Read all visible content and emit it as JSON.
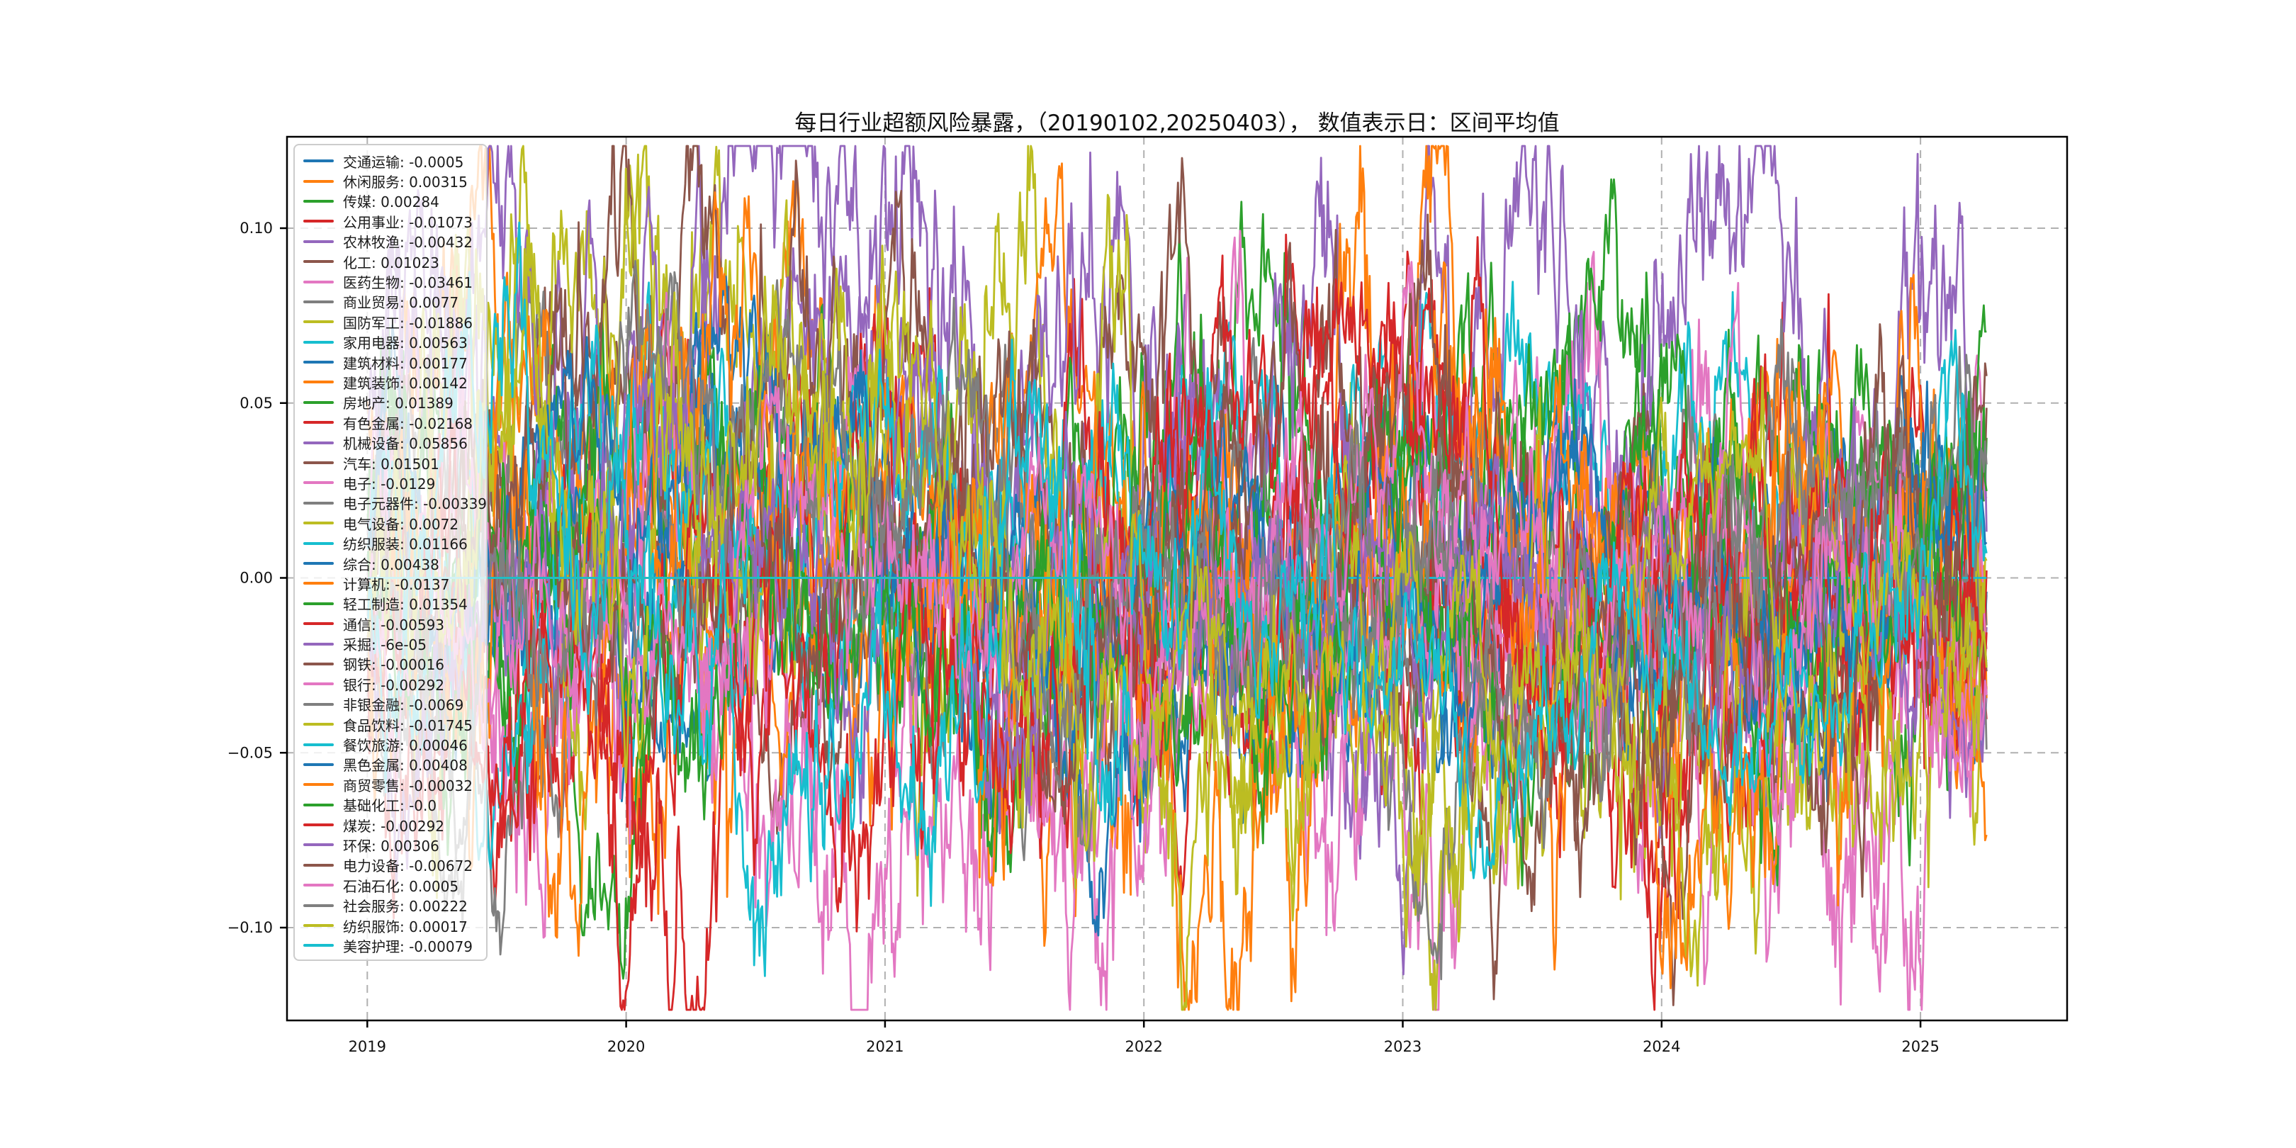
{
  "chart_data": {
    "type": "line",
    "title": "每日行业超额风险暴露，（20190102,20250403）， 数值表示日：区间平均值",
    "start_date": "20190102",
    "end_date": "20250403",
    "value_note": "数值表示日：区间平均值",
    "grid": true,
    "legend_position": "upper left",
    "x_ticks": [
      2019,
      2020,
      2021,
      2022,
      2023,
      2024,
      2025
    ],
    "y_ticks": [
      {
        "value": 0.1,
        "label": "0.10"
      },
      {
        "value": 0.05,
        "label": "0.05"
      },
      {
        "value": 0.0,
        "label": "0.00"
      },
      {
        "value": -0.05,
        "label": "−0.05"
      },
      {
        "value": -0.1,
        "label": "−0.10"
      }
    ],
    "ylim": [
      -0.127,
      0.126
    ],
    "xlim_years": [
      2018.69,
      2025.57
    ],
    "palette": [
      "#1f77b4",
      "#ff7f0e",
      "#2ca02c",
      "#d62728",
      "#9467bd",
      "#8c564b",
      "#e377c2",
      "#7f7f7f",
      "#bcbd22",
      "#17becf"
    ],
    "series": [
      {
        "label": "交通运输",
        "value": "-0.0005",
        "volScale": 0.75
      },
      {
        "label": "休闲服务",
        "value": "0.00315",
        "volScale": 1.5,
        "active": [
          0,
          0.472
        ],
        "profile": [
          [
            0,
            0.005
          ],
          [
            0.17,
            -0.04
          ],
          [
            0.22,
            -0.02
          ],
          [
            0.3,
            -0.045
          ],
          [
            0.4,
            0.0
          ],
          [
            0.472,
            0.01
          ]
        ]
      },
      {
        "label": "传媒",
        "value": "0.00284",
        "volScale": 1.1
      },
      {
        "label": "公用事业",
        "value": "-0.01073",
        "volScale": 1.0
      },
      {
        "label": "农林牧渔",
        "value": "-0.00432",
        "volScale": 1.2,
        "profile": [
          [
            0,
            0.01
          ],
          [
            0.1,
            0.03
          ],
          [
            0.18,
            0.01
          ],
          [
            0.3,
            -0.01
          ],
          [
            0.5,
            -0.02
          ],
          [
            0.7,
            0.0
          ],
          [
            0.85,
            -0.015
          ],
          [
            1,
            -0.01
          ]
        ]
      },
      {
        "label": "化工",
        "value": "0.01023",
        "volScale": 1.0,
        "active": [
          0,
          0.472
        ],
        "profile": [
          [
            0,
            0.005
          ],
          [
            0.15,
            0.02
          ],
          [
            0.3,
            0.01
          ],
          [
            0.4,
            0.02
          ],
          [
            0.472,
            0.015
          ]
        ]
      },
      {
        "label": "医药生物",
        "value": "-0.03461",
        "volScale": 1.6,
        "profile": [
          [
            0,
            -0.005
          ],
          [
            0.1,
            -0.03
          ],
          [
            0.17,
            -0.05
          ],
          [
            0.2,
            -0.1
          ],
          [
            0.24,
            -0.05
          ],
          [
            0.285,
            -0.085
          ],
          [
            0.33,
            -0.045
          ],
          [
            0.45,
            -0.035
          ],
          [
            0.55,
            -0.03
          ],
          [
            0.65,
            -0.02
          ],
          [
            0.75,
            -0.025
          ],
          [
            0.84,
            -0.03
          ],
          [
            0.9,
            -0.045
          ],
          [
            1,
            -0.03
          ]
        ]
      },
      {
        "label": "商业贸易",
        "value": "0.0077",
        "volScale": 0.9,
        "active": [
          0,
          0.472
        ]
      },
      {
        "label": "国防军工",
        "value": "-0.01886",
        "volScale": 1.4,
        "profile": [
          [
            0,
            0.0
          ],
          [
            0.15,
            0.03
          ],
          [
            0.25,
            0.04
          ],
          [
            0.3,
            0.02
          ],
          [
            0.35,
            -0.02
          ],
          [
            0.5,
            -0.04
          ],
          [
            0.65,
            -0.03
          ],
          [
            0.8,
            -0.04
          ],
          [
            1,
            -0.02
          ]
        ]
      },
      {
        "label": "家用电器",
        "value": "0.00563",
        "volScale": 0.95
      },
      {
        "label": "建筑材料",
        "value": "0.00177",
        "volScale": 0.95
      },
      {
        "label": "建筑装饰",
        "value": "0.00142",
        "volScale": 0.85
      },
      {
        "label": "房地产",
        "value": "0.01389",
        "volScale": 1.15,
        "profile": [
          [
            0,
            0.02
          ],
          [
            0.2,
            0.01
          ],
          [
            0.4,
            0.0
          ],
          [
            0.5,
            0.02
          ],
          [
            0.6,
            0.03
          ],
          [
            0.7,
            0.01
          ],
          [
            0.8,
            0.0
          ],
          [
            0.9,
            0.02
          ],
          [
            1,
            0.015
          ]
        ]
      },
      {
        "label": "有色金属",
        "value": "-0.02168",
        "volScale": 1.3,
        "profile": [
          [
            0,
            -0.01
          ],
          [
            0.2,
            -0.03
          ],
          [
            0.35,
            -0.04
          ],
          [
            0.5,
            -0.02
          ],
          [
            0.6,
            -0.035
          ],
          [
            0.75,
            -0.015
          ],
          [
            0.9,
            -0.02
          ],
          [
            1,
            -0.01
          ]
        ]
      },
      {
        "label": "机械设备",
        "value": "0.05856",
        "volScale": 1.5,
        "profile": [
          [
            0,
            0.055
          ],
          [
            0.08,
            0.075
          ],
          [
            0.15,
            0.055
          ],
          [
            0.22,
            0.08
          ],
          [
            0.27,
            0.1
          ],
          [
            0.33,
            0.06
          ],
          [
            0.42,
            0.045
          ],
          [
            0.5,
            0.055
          ],
          [
            0.56,
            0.1
          ],
          [
            0.62,
            0.05
          ],
          [
            0.68,
            0.07
          ],
          [
            0.74,
            0.075
          ],
          [
            0.8,
            0.05
          ],
          [
            0.86,
            0.035
          ],
          [
            0.92,
            0.05
          ],
          [
            1,
            0.055
          ]
        ]
      },
      {
        "label": "汽车",
        "value": "0.01501",
        "volScale": 1.2,
        "profile": [
          [
            0,
            0.01
          ],
          [
            0.12,
            0.04
          ],
          [
            0.25,
            0.03
          ],
          [
            0.4,
            0.02
          ],
          [
            0.55,
            0.035
          ],
          [
            0.7,
            0.01
          ],
          [
            0.85,
            0.005
          ],
          [
            1,
            0.01
          ]
        ]
      },
      {
        "label": "电子",
        "value": "-0.0129",
        "volScale": 1.3,
        "profile": [
          [
            0,
            0.02
          ],
          [
            0.15,
            0.04
          ],
          [
            0.25,
            0.02
          ],
          [
            0.4,
            -0.02
          ],
          [
            0.55,
            -0.04
          ],
          [
            0.7,
            -0.03
          ],
          [
            0.8,
            -0.02
          ],
          [
            0.9,
            -0.04
          ],
          [
            1,
            -0.03
          ]
        ]
      },
      {
        "label": "电子元器件",
        "value": "-0.00339",
        "volScale": 0.9
      },
      {
        "label": "电气设备",
        "value": "0.0072",
        "volScale": 1.3,
        "active": [
          0,
          0.472
        ],
        "profile": [
          [
            0,
            0.01
          ],
          [
            0.12,
            0.035
          ],
          [
            0.2,
            0.02
          ],
          [
            0.3,
            0.045
          ],
          [
            0.4,
            0.035
          ],
          [
            0.472,
            0.02
          ]
        ]
      },
      {
        "label": "纺织服装",
        "value": "0.01166",
        "volScale": 1.0,
        "active": [
          0,
          0.472
        ]
      },
      {
        "label": "综合",
        "value": "0.00438",
        "volScale": 0.8
      },
      {
        "label": "计算机",
        "value": "-0.0137",
        "volScale": 1.5,
        "profile": [
          [
            0,
            0.0
          ],
          [
            0.2,
            0.01
          ],
          [
            0.35,
            -0.025
          ],
          [
            0.5,
            -0.04
          ],
          [
            0.6,
            -0.02
          ],
          [
            0.655,
            0.06
          ],
          [
            0.685,
            0.105
          ],
          [
            0.71,
            0.04
          ],
          [
            0.75,
            -0.02
          ],
          [
            0.85,
            -0.035
          ],
          [
            0.93,
            0.0
          ],
          [
            1,
            -0.01
          ]
        ]
      },
      {
        "label": "轻工制造",
        "value": "0.01354",
        "volScale": 1.0
      },
      {
        "label": "通信",
        "value": "-0.00593",
        "volScale": 1.1
      },
      {
        "label": "采掘",
        "value": "-6e-05",
        "volScale": 1.0,
        "active": [
          0,
          0.472
        ]
      },
      {
        "label": "钢铁",
        "value": "-0.00016",
        "volScale": 0.85
      },
      {
        "label": "银行",
        "value": "-0.00292",
        "volScale": 0.8
      },
      {
        "label": "非银金融",
        "value": "-0.0069",
        "volScale": 1.0
      },
      {
        "label": "食品饮料",
        "value": "-0.01745",
        "volScale": 1.2,
        "profile": [
          [
            0,
            0.01
          ],
          [
            0.2,
            0.02
          ],
          [
            0.33,
            0.01
          ],
          [
            0.45,
            -0.03
          ],
          [
            0.6,
            -0.045
          ],
          [
            0.75,
            -0.04
          ],
          [
            0.9,
            -0.03
          ],
          [
            1,
            -0.035
          ]
        ]
      },
      {
        "label": "餐饮旅游",
        "value": "0.00046",
        "volScale": 1.1,
        "active": [
          0,
          0.472
        ]
      },
      {
        "label": "黑色金属",
        "value": "0.00408",
        "volScale": 0.85,
        "active": [
          0.472,
          1
        ]
      },
      {
        "label": "商贸零售",
        "value": "-0.00032",
        "volScale": 1.2,
        "active": [
          0.472,
          1
        ],
        "profile": [
          [
            0.472,
            0.0
          ],
          [
            0.6,
            -0.01
          ],
          [
            0.66,
            0.02
          ],
          [
            0.7,
            0.05
          ],
          [
            0.73,
            0.0
          ],
          [
            0.85,
            -0.01
          ],
          [
            1,
            0.0
          ]
        ]
      },
      {
        "label": "基础化工",
        "value": "-0.0",
        "volScale": 0.9,
        "active": [
          0.472,
          1
        ]
      },
      {
        "label": "煤炭",
        "value": "-0.00292",
        "volScale": 1.1,
        "active": [
          0.472,
          1
        ],
        "profile": [
          [
            0.472,
            0.0
          ],
          [
            0.6,
            0.02
          ],
          [
            0.7,
            0.03
          ],
          [
            0.78,
            -0.01
          ],
          [
            0.9,
            -0.02
          ],
          [
            1,
            -0.01
          ]
        ]
      },
      {
        "label": "环保",
        "value": "0.00306",
        "volScale": 0.9,
        "active": [
          0.472,
          1
        ]
      },
      {
        "label": "电力设备",
        "value": "-0.00672",
        "volScale": 1.1,
        "active": [
          0.472,
          1
        ],
        "profile": [
          [
            0.472,
            0.02
          ],
          [
            0.55,
            0.01
          ],
          [
            0.65,
            -0.01
          ],
          [
            0.75,
            -0.02
          ],
          [
            0.85,
            -0.015
          ],
          [
            1,
            -0.01
          ]
        ]
      },
      {
        "label": "石油石化",
        "value": "0.0005",
        "volScale": 1.0,
        "active": [
          0.472,
          1
        ],
        "profile": [
          [
            0.472,
            0.0
          ],
          [
            0.6,
            0.01
          ],
          [
            0.7,
            0.005
          ],
          [
            0.82,
            0.0
          ],
          [
            0.845,
            0.075
          ],
          [
            0.86,
            0.0
          ],
          [
            0.95,
            -0.005
          ],
          [
            1,
            0.0
          ]
        ]
      },
      {
        "label": "社会服务",
        "value": "0.00222",
        "volScale": 0.95,
        "active": [
          0.472,
          1
        ]
      },
      {
        "label": "纺织服饰",
        "value": "0.00017",
        "volScale": 0.85,
        "active": [
          0.472,
          1
        ]
      },
      {
        "label": "美容护理",
        "value": "-0.00079",
        "volScale": 0.9,
        "active": [
          0.472,
          1
        ]
      }
    ]
  }
}
